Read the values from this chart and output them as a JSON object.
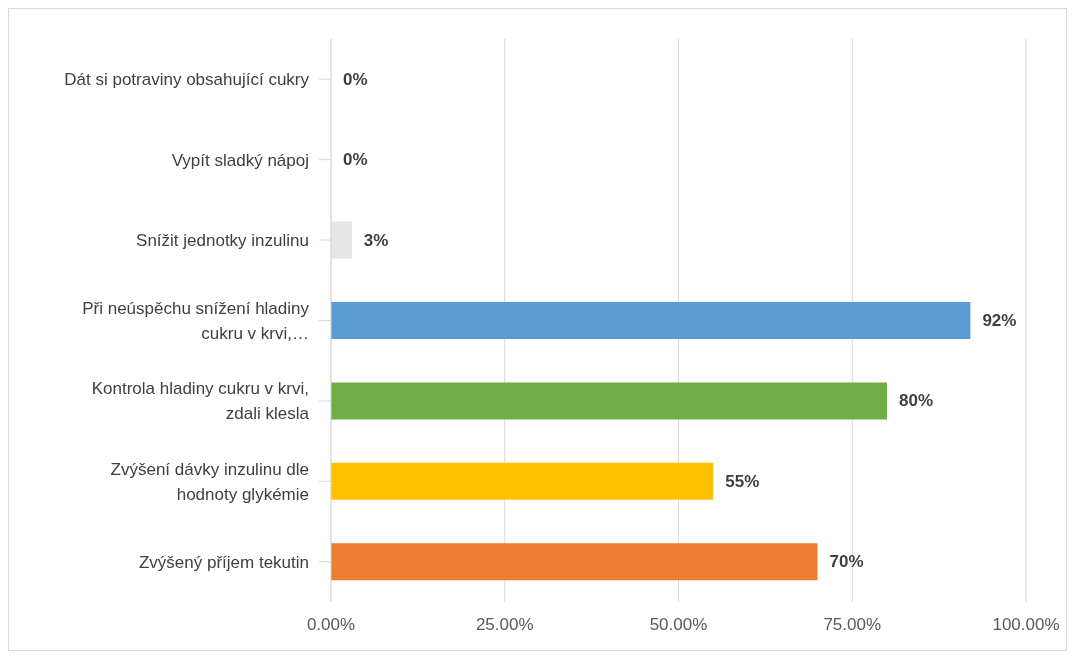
{
  "chart_data": {
    "type": "bar",
    "orientation": "horizontal",
    "categories": [
      "Dát si potraviny obsahující cukry",
      "Vypít sladký nápoj",
      "Snížit jednotky inzulinu",
      "Při neúspěchu snížení hladiny cukru v krvi,…",
      "Kontrola hladiny cukru v krvi, zdali klesla",
      "Zvýšení dávky inzulinu dle hodnoty glykémie",
      "Zvýšený příjem tekutin"
    ],
    "values": [
      0,
      0,
      3,
      92,
      80,
      55,
      70
    ],
    "colors": [
      "#4472c4",
      "#a5a5a5",
      "#e7e6e6",
      "#5b9bd5",
      "#70ad47",
      "#ffc000",
      "#ed7d31"
    ],
    "value_labels": [
      "0%",
      "0%",
      "3%",
      "92%",
      "80%",
      "55%",
      "70%"
    ],
    "xlim": [
      0,
      100
    ],
    "xticks": [
      {
        "value": 0,
        "label": "0.00%"
      },
      {
        "value": 25,
        "label": "25.00%"
      },
      {
        "value": 50,
        "label": "50.00%"
      },
      {
        "value": 75,
        "label": "75.00%"
      },
      {
        "value": 100,
        "label": "100.00%"
      }
    ],
    "grid": "x",
    "legend": false
  }
}
